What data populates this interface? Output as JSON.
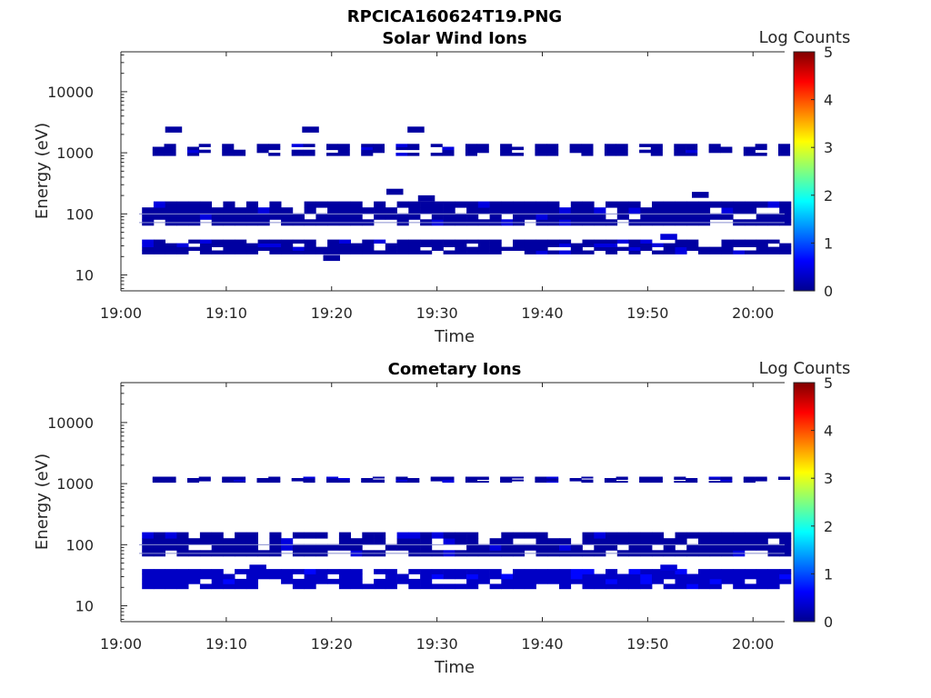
{
  "figure": {
    "title": "RPCICA160624T19.PNG"
  },
  "chart_data": [
    {
      "type": "heatmap",
      "title": "Solar Wind Ions",
      "xlabel": "Time",
      "ylabel": "Energy (eV)",
      "x_ticks": [
        "19:00",
        "19:10",
        "19:20",
        "19:30",
        "19:40",
        "19:50",
        "20:00"
      ],
      "y_ticks": [
        "10",
        "100",
        "1000",
        "10000"
      ],
      "y_scale": "log",
      "xlim": [
        "19:00",
        "20:03"
      ],
      "ylim": [
        5.5,
        45000
      ],
      "colorbar": {
        "label": "Log Counts",
        "range": [
          0,
          5
        ],
        "ticks": [
          "0",
          "1",
          "2",
          "3",
          "4",
          "5"
        ],
        "colormap": "jet"
      },
      "bands": [
        {
          "e_min": 900,
          "e_max": 1400,
          "t_start": "19:03",
          "t_end": "20:03",
          "value": 0.1,
          "gaps": true
        },
        {
          "e_min": 65,
          "e_max": 160,
          "t_start": "19:02",
          "t_end": "20:03",
          "value": 0.1,
          "gaps": false
        },
        {
          "e_min": 22,
          "e_max": 38,
          "t_start": "19:02",
          "t_end": "20:03",
          "value": 0.1,
          "gaps": false
        }
      ],
      "spots": [
        {
          "t": "19:05",
          "e": 2400,
          "value": 0.1
        },
        {
          "t": "19:18",
          "e": 2400,
          "value": 0.1
        },
        {
          "t": "19:28",
          "e": 2400,
          "value": 0.1
        },
        {
          "t": "19:26",
          "e": 230,
          "value": 0.1
        },
        {
          "t": "19:29",
          "e": 180,
          "value": 0.1
        },
        {
          "t": "19:55",
          "e": 205,
          "value": 0.1
        },
        {
          "t": "19:20",
          "e": 19,
          "value": 0.1
        },
        {
          "t": "19:52",
          "e": 42,
          "value": 0.4
        }
      ]
    },
    {
      "type": "heatmap",
      "title": "Cometary Ions",
      "xlabel": "Time",
      "ylabel": "Energy (eV)",
      "x_ticks": [
        "19:00",
        "19:10",
        "19:20",
        "19:30",
        "19:40",
        "19:50",
        "20:00"
      ],
      "y_ticks": [
        "10",
        "100",
        "1000",
        "10000"
      ],
      "y_scale": "log",
      "xlim": [
        "19:00",
        "20:03"
      ],
      "ylim": [
        5.5,
        45000
      ],
      "colorbar": {
        "label": "Log Counts",
        "range": [
          0,
          5
        ],
        "ticks": [
          "0",
          "1",
          "2",
          "3",
          "4",
          "5"
        ],
        "colormap": "jet"
      },
      "bands": [
        {
          "e_min": 1050,
          "e_max": 1300,
          "t_start": "19:03",
          "t_end": "20:03",
          "value": 0.1,
          "gaps": true
        },
        {
          "e_min": 65,
          "e_max": 160,
          "t_start": "19:02",
          "t_end": "20:03",
          "value": 0.1,
          "gaps": false
        },
        {
          "e_min": 19,
          "e_max": 40,
          "t_start": "19:02",
          "t_end": "20:03",
          "value": 0.3,
          "gaps": false
        }
      ],
      "spots": [
        {
          "t": "19:52",
          "e": 42,
          "value": 0.4
        },
        {
          "t": "19:13",
          "e": 42,
          "value": 0.3
        }
      ]
    }
  ]
}
